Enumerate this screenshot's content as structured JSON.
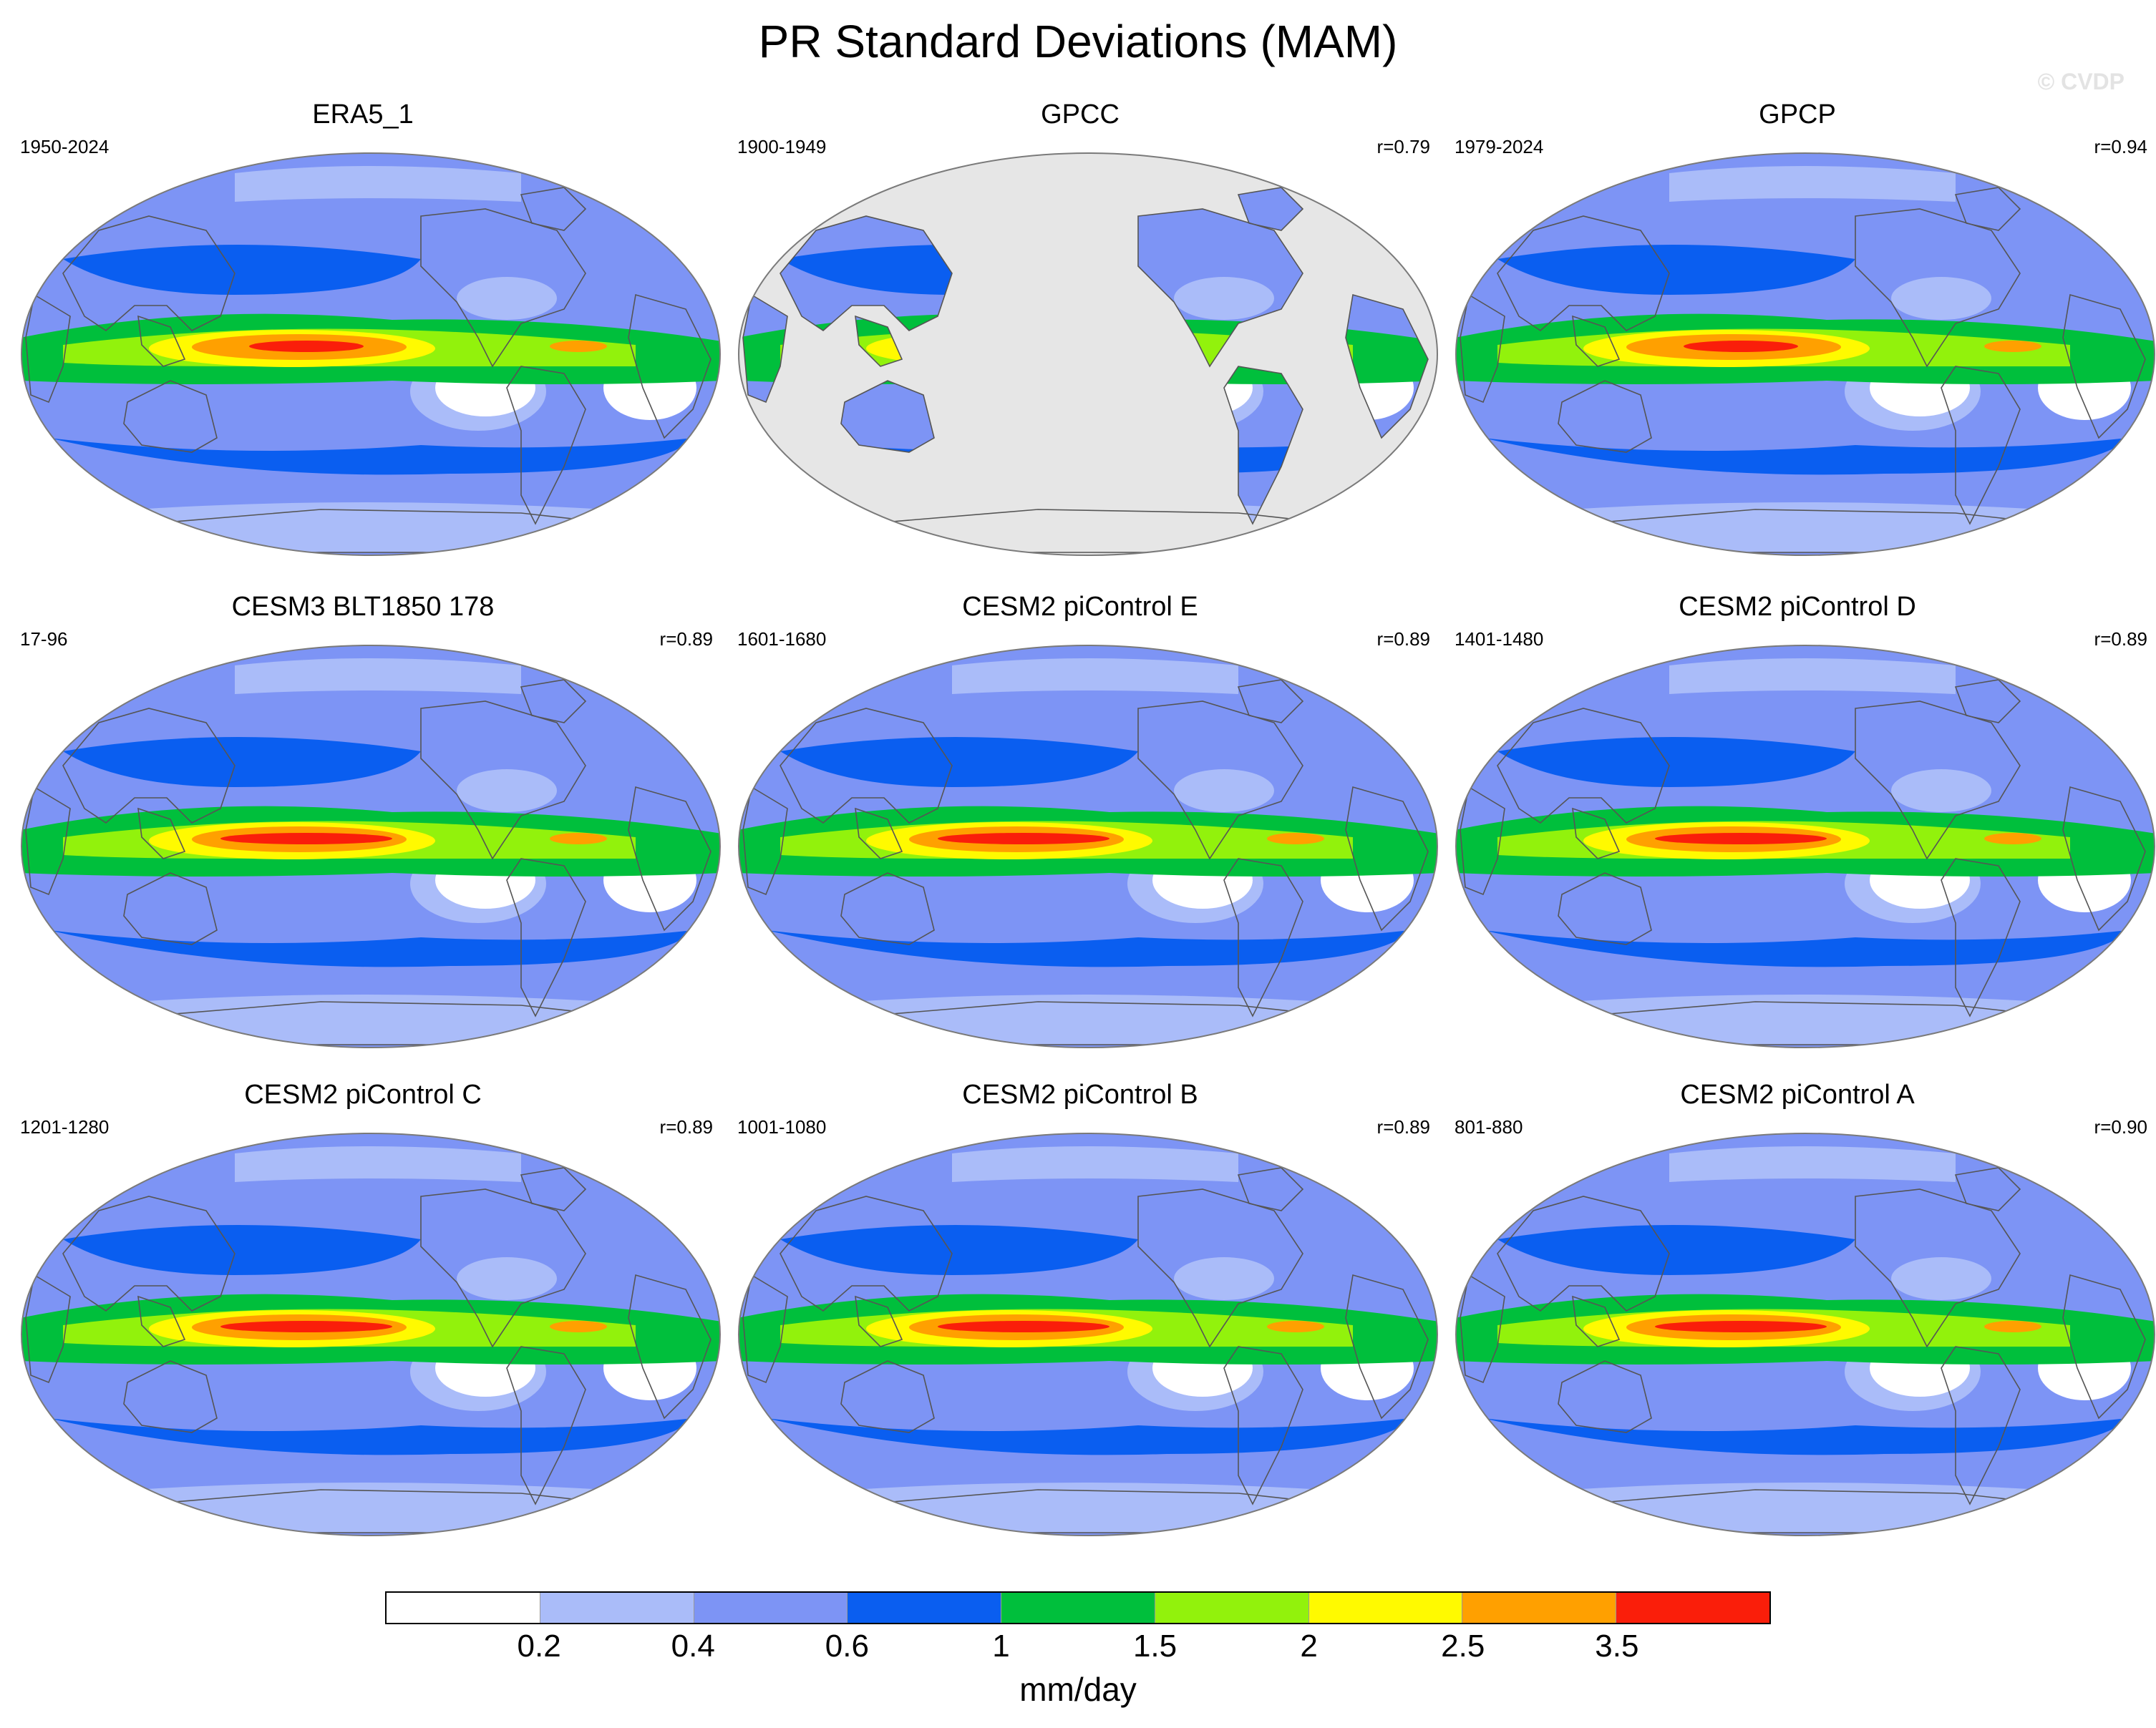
{
  "title": "PR Standard Deviations (MAM)",
  "watermark": "© CVDP",
  "panels": [
    {
      "title": "ERA5_1",
      "period": "1950-2024",
      "corr": "",
      "land_only": false
    },
    {
      "title": "GPCC",
      "period": "1900-1949",
      "corr": "r=0.79",
      "land_only": true
    },
    {
      "title": "GPCP",
      "period": "1979-2024",
      "corr": "r=0.94",
      "land_only": false
    },
    {
      "title": "CESM3 BLT1850 178",
      "period": "17-96",
      "corr": "r=0.89",
      "land_only": false
    },
    {
      "title": "CESM2 piControl E",
      "period": "1601-1680",
      "corr": "r=0.89",
      "land_only": false
    },
    {
      "title": "CESM2 piControl D",
      "period": "1401-1480",
      "corr": "r=0.89",
      "land_only": false
    },
    {
      "title": "CESM2 piControl C",
      "period": "1201-1280",
      "corr": "r=0.89",
      "land_only": false
    },
    {
      "title": "CESM2 piControl B",
      "period": "1001-1080",
      "corr": "r=0.89",
      "land_only": false
    },
    {
      "title": "CESM2 piControl A",
      "period": "801-880",
      "corr": "r=0.90",
      "land_only": false
    }
  ],
  "colorbar": {
    "labels": [
      "0.2",
      "0.4",
      "0.6",
      "1",
      "1.5",
      "2",
      "2.5",
      "3.5"
    ],
    "colors": [
      "#ffffff",
      "#aabcf9",
      "#7d94f5",
      "#0a5ef0",
      "#00bf3c",
      "#92f20c",
      "#fffa00",
      "#ffa000",
      "#fa1e0a"
    ],
    "units": "mm/day"
  },
  "map_style": {
    "missing_color": "#e6e6e6",
    "coast_color": "#555555",
    "frame_color": "#7a7a7a"
  }
}
